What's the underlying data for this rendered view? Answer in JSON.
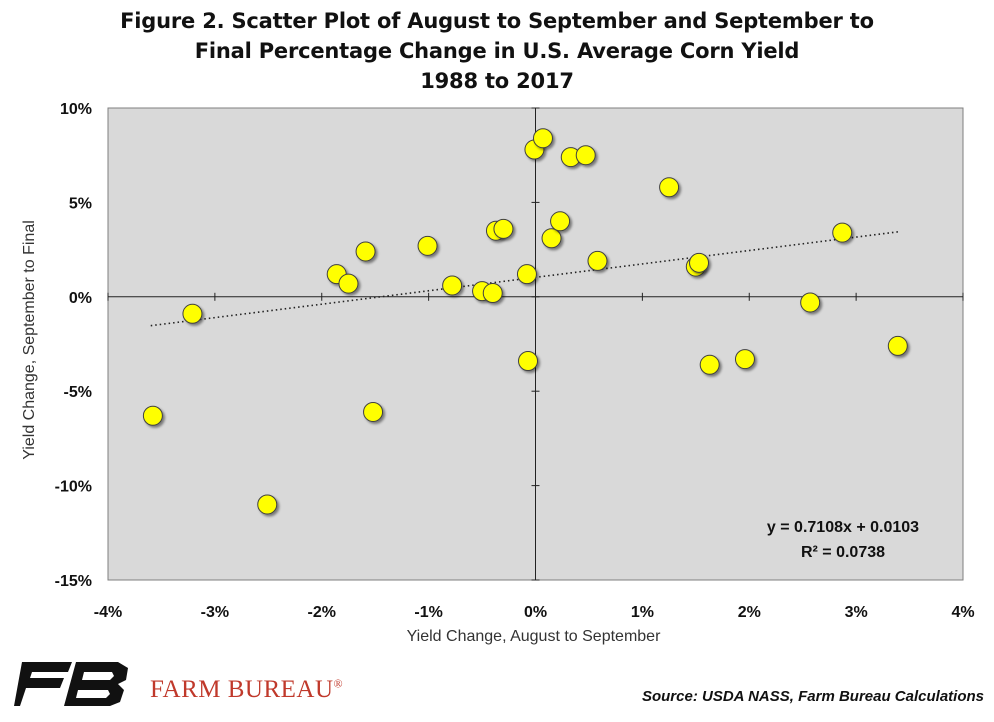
{
  "title": {
    "line1": "Figure 2. Scatter Plot of August to September and September to",
    "line2": "Final Percentage Change in U.S. Average Corn Yield",
    "line3": "1988 to 2017"
  },
  "chart_data": {
    "type": "scatter",
    "xlabel": "Yield Change, August to September",
    "ylabel": "Yield Change, September to Final",
    "xlim": [
      -0.04,
      0.04
    ],
    "ylim": [
      -0.15,
      0.1
    ],
    "x_ticks": [
      {
        "value": -0.04,
        "label": "-4%"
      },
      {
        "value": -0.03,
        "label": "-3%"
      },
      {
        "value": -0.02,
        "label": "-2%"
      },
      {
        "value": -0.01,
        "label": "-1%"
      },
      {
        "value": 0.0,
        "label": "0%"
      },
      {
        "value": 0.01,
        "label": "1%"
      },
      {
        "value": 0.02,
        "label": "2%"
      },
      {
        "value": 0.03,
        "label": "3%"
      },
      {
        "value": 0.04,
        "label": "4%"
      }
    ],
    "y_ticks": [
      {
        "value": 0.1,
        "label": "10%"
      },
      {
        "value": 0.05,
        "label": "5%"
      },
      {
        "value": 0.0,
        "label": "0%"
      },
      {
        "value": -0.05,
        "label": "-5%"
      },
      {
        "value": -0.1,
        "label": "-10%"
      },
      {
        "value": -0.15,
        "label": "-15%"
      }
    ],
    "grid": false,
    "points": [
      {
        "x": -0.0358,
        "y": -0.063
      },
      {
        "x": -0.0321,
        "y": -0.009
      },
      {
        "x": -0.0251,
        "y": -0.11
      },
      {
        "x": -0.0186,
        "y": 0.012
      },
      {
        "x": -0.0175,
        "y": 0.007
      },
      {
        "x": -0.0159,
        "y": 0.024
      },
      {
        "x": -0.0152,
        "y": -0.061
      },
      {
        "x": -0.0101,
        "y": 0.027
      },
      {
        "x": -0.0078,
        "y": 0.006
      },
      {
        "x": -0.005,
        "y": 0.003
      },
      {
        "x": -0.004,
        "y": 0.002
      },
      {
        "x": -0.0037,
        "y": 0.035
      },
      {
        "x": -0.003,
        "y": 0.036
      },
      {
        "x": -0.0008,
        "y": 0.012
      },
      {
        "x": -0.0007,
        "y": -0.034
      },
      {
        "x": -0.0001,
        "y": 0.078
      },
      {
        "x": 0.0007,
        "y": 0.084
      },
      {
        "x": 0.0015,
        "y": 0.031
      },
      {
        "x": 0.0023,
        "y": 0.04
      },
      {
        "x": 0.0033,
        "y": 0.074
      },
      {
        "x": 0.0047,
        "y": 0.075
      },
      {
        "x": 0.0058,
        "y": 0.019
      },
      {
        "x": 0.0125,
        "y": 0.058
      },
      {
        "x": 0.015,
        "y": 0.016
      },
      {
        "x": 0.0153,
        "y": 0.018
      },
      {
        "x": 0.0163,
        "y": -0.036
      },
      {
        "x": 0.0196,
        "y": -0.033
      },
      {
        "x": 0.0257,
        "y": -0.003
      },
      {
        "x": 0.0287,
        "y": 0.034
      },
      {
        "x": 0.0339,
        "y": -0.026
      }
    ],
    "trendline": {
      "slope": 0.7108,
      "intercept": 0.0103,
      "x_range": [
        -0.036,
        0.034
      ],
      "style": "dotted"
    },
    "annotations": [
      "y = 0.7108x + 0.0103",
      "R² = 0.0738"
    ],
    "colors": {
      "plot_bg": "#d9d9d9",
      "marker_fill": "#ffff00",
      "marker_stroke": "#404040"
    }
  },
  "footer": {
    "source": "Source: USDA NASS, Farm Bureau Calculations",
    "brand": "FARM BUREAU",
    "brand_mark": "®",
    "brand_color": "#c0392b",
    "logo_icon": "farm-bureau-fb-logo"
  }
}
